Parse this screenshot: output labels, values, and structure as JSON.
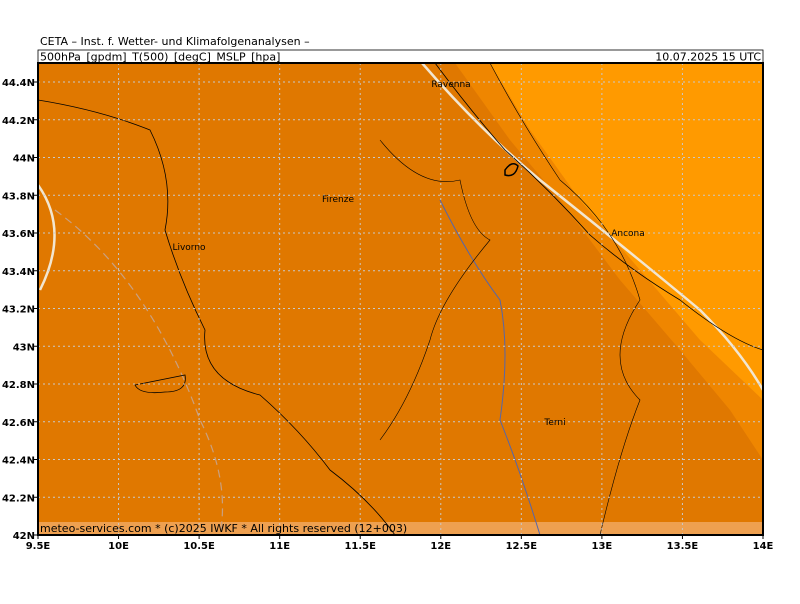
{
  "header": {
    "title": "CETA – Inst. f. Wetter- und Klimafolgenanalysen –",
    "parameters": "500hPa_[gpdm]_T(500)_[degC]_MSLP_[hpa]",
    "valid_time": "10.07.2025 15 UTC"
  },
  "axes": {
    "lon_ticks": [
      {
        "value": 9.5,
        "label": "9.5E"
      },
      {
        "value": 10,
        "label": "10E"
      },
      {
        "value": 10.5,
        "label": "10.5E"
      },
      {
        "value": 11,
        "label": "11E"
      },
      {
        "value": 11.5,
        "label": "11.5E"
      },
      {
        "value": 12,
        "label": "12E"
      },
      {
        "value": 12.5,
        "label": "12.5E"
      },
      {
        "value": 13,
        "label": "13E"
      },
      {
        "value": 13.5,
        "label": "13.5E"
      },
      {
        "value": 14,
        "label": "14E"
      }
    ],
    "lat_ticks": [
      {
        "value": 42,
        "label": "42N"
      },
      {
        "value": 42.2,
        "label": "42.2N"
      },
      {
        "value": 42.4,
        "label": "42.4N"
      },
      {
        "value": 42.6,
        "label": "42.6N"
      },
      {
        "value": 42.8,
        "label": "42.8N"
      },
      {
        "value": 43,
        "label": "43N"
      },
      {
        "value": 43.2,
        "label": "43.2N"
      },
      {
        "value": 43.4,
        "label": "43.4N"
      },
      {
        "value": 43.6,
        "label": "43.6N"
      },
      {
        "value": 43.8,
        "label": "43.8N"
      },
      {
        "value": 44,
        "label": "44N"
      },
      {
        "value": 44.2,
        "label": "44.2N"
      },
      {
        "value": 44.4,
        "label": "44.4N"
      }
    ]
  },
  "places": [
    "Ravenna",
    "Firenze",
    "Livorno",
    "Ancona",
    "Terni"
  ],
  "footer": "meteo-services.com * (c)2025 IWKF * All rights reserved (12+003)"
}
